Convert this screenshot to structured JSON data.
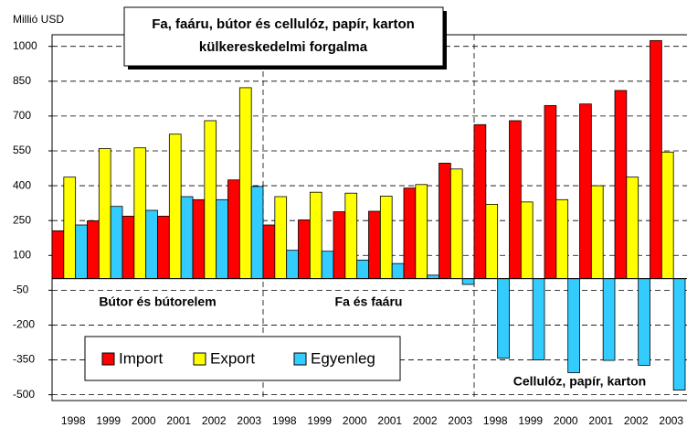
{
  "chart_data": {
    "type": "bar",
    "title": [
      "Fa, faáru, bútor és cellulóz, papír, karton",
      "külkereskedelmi forgalma"
    ],
    "ylabel": "Millió USD",
    "groups": [
      "Bútor és bútorelem",
      "Fa és faáru",
      "Cellulóz, papír, karton"
    ],
    "categories": [
      "1998",
      "1999",
      "2000",
      "2001",
      "2002",
      "2003",
      "1998",
      "1999",
      "2000",
      "2001",
      "2002",
      "2003",
      "1998",
      "1999",
      "2000",
      "2001",
      "2002",
      "2003"
    ],
    "series": [
      {
        "name": "Import",
        "color": "#ff0000",
        "values": [
          206,
          249,
          269,
          269,
          340,
          425,
          231,
          253,
          288,
          290,
          390,
          497,
          663,
          680,
          745,
          752,
          810,
          1025
        ]
      },
      {
        "name": "Export",
        "color": "#ffff00",
        "values": [
          437,
          560,
          563,
          622,
          680,
          822,
          353,
          372,
          368,
          355,
          405,
          472,
          320,
          330,
          340,
          400,
          437,
          545
        ]
      },
      {
        "name": "Egyenleg",
        "color": "#33ccff",
        "values": [
          231,
          311,
          294,
          353,
          340,
          397,
          122,
          118,
          80,
          65,
          15,
          -25,
          -343,
          -350,
          -405,
          -352,
          -373,
          -480
        ]
      }
    ],
    "ylim": [
      -525,
      1050
    ],
    "yticks": [
      -500,
      -350,
      -200,
      -50,
      100,
      250,
      400,
      550,
      700,
      850,
      1000
    ],
    "grid": true,
    "legend": "lower left"
  }
}
